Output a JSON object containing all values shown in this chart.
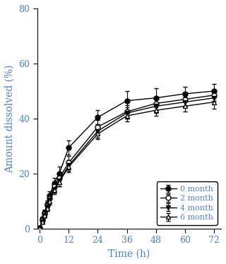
{
  "time": [
    0,
    1,
    2,
    3,
    4,
    6,
    8,
    12,
    24,
    36,
    48,
    60,
    72
  ],
  "series": {
    "0 month": {
      "y": [
        0.3,
        3.5,
        6.0,
        9.0,
        12.0,
        16.5,
        20.0,
        29.5,
        40.5,
        46.5,
        47.5,
        49.0,
        50.0
      ],
      "yerr": [
        0.3,
        0.8,
        1.0,
        1.2,
        1.5,
        2.0,
        2.5,
        2.5,
        2.5,
        3.5,
        3.5,
        2.5,
        2.5
      ],
      "marker": "o",
      "fillstyle": "full",
      "color": "#000000",
      "label": "0 month"
    },
    "2 month": {
      "y": [
        0.2,
        3.0,
        5.5,
        8.5,
        11.0,
        15.5,
        18.5,
        24.0,
        37.0,
        42.5,
        45.5,
        47.0,
        48.5
      ],
      "yerr": [
        0.3,
        0.8,
        1.0,
        1.2,
        1.5,
        1.8,
        2.0,
        2.5,
        2.5,
        2.5,
        2.5,
        2.5,
        2.0
      ],
      "marker": "o",
      "fillstyle": "none",
      "color": "#000000",
      "label": "2 month"
    },
    "4 month": {
      "y": [
        0.2,
        2.5,
        5.0,
        8.0,
        10.5,
        14.5,
        17.5,
        23.0,
        35.5,
        42.0,
        44.5,
        46.0,
        47.5
      ],
      "yerr": [
        0.3,
        0.8,
        1.0,
        1.0,
        1.2,
        1.5,
        2.0,
        2.0,
        2.5,
        2.0,
        2.5,
        2.0,
        2.0
      ],
      "marker": "v",
      "fillstyle": "full",
      "color": "#000000",
      "label": "4 month"
    },
    "6 month": {
      "y": [
        0.2,
        2.5,
        5.0,
        7.5,
        10.0,
        14.0,
        17.0,
        22.5,
        34.5,
        41.0,
        43.0,
        44.5,
        46.0
      ],
      "yerr": [
        0.3,
        0.7,
        0.8,
        1.0,
        1.2,
        1.5,
        1.5,
        2.0,
        2.0,
        2.0,
        2.0,
        2.0,
        2.5
      ],
      "marker": "^",
      "fillstyle": "none",
      "color": "#000000",
      "label": "6 month"
    }
  },
  "series_order": [
    "0 month",
    "2 month",
    "4 month",
    "6 month"
  ],
  "xlabel": "Time (h)",
  "ylabel": "Amount dissolved (%)",
  "xlim": [
    -1,
    75
  ],
  "ylim": [
    0,
    80
  ],
  "xticks": [
    0,
    12,
    24,
    36,
    48,
    60,
    72
  ],
  "yticks": [
    0,
    20,
    40,
    60,
    80
  ],
  "legend_loc": "lower right",
  "markersize": 5,
  "linewidth": 1.0,
  "capsize": 2,
  "elinewidth": 0.8,
  "label_color": "#4f81bd",
  "tick_color": "#4f81bd",
  "legend_text_color": "#4f81bd",
  "background_color": "#ffffff"
}
